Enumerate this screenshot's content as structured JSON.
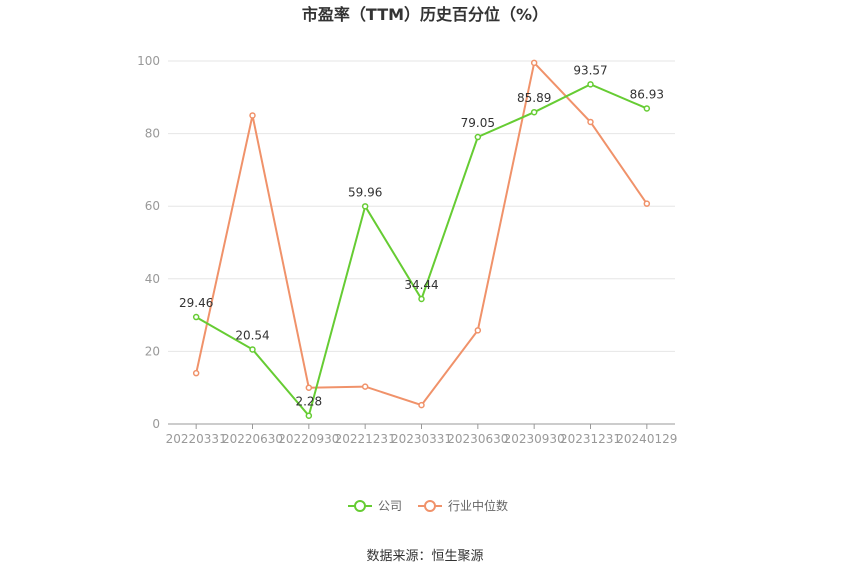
{
  "chart_data": {
    "type": "line",
    "title": "市盈率（TTM）历史百分位（%）",
    "categories": [
      "20220331",
      "20220630",
      "20220930",
      "20221231",
      "20230331",
      "20230630",
      "20230930",
      "20231231",
      "20240129"
    ],
    "series": [
      {
        "name": "公司",
        "color": "#66cc33",
        "values": [
          29.46,
          20.54,
          2.28,
          59.96,
          34.44,
          79.05,
          85.89,
          93.57,
          86.93
        ],
        "labels": [
          "29.46",
          "20.54",
          "2.28",
          "59.96",
          "34.44",
          "79.05",
          "85.89",
          "93.57",
          "86.93"
        ]
      },
      {
        "name": "行业中位数",
        "color": "#f0926a",
        "values": [
          14,
          85,
          10,
          10.3,
          5.2,
          25.8,
          99.5,
          83.2,
          60.7
        ]
      }
    ],
    "ylim": [
      0,
      100
    ],
    "yticks": [
      "0",
      "20",
      "40",
      "60",
      "80",
      "100"
    ],
    "grid": true,
    "legend": "bottom"
  },
  "source": "数据来源：恒生聚源"
}
